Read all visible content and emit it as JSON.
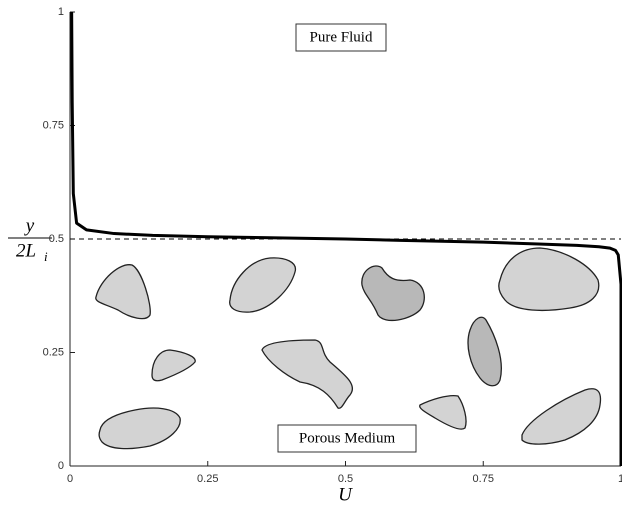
{
  "chart_data": {
    "type": "line",
    "xlabel": "U",
    "ylabel_numerator": "y",
    "ylabel_denominator": "2L",
    "ylabel_subscript": "i",
    "annotations": [
      "Pure Fluid",
      "Porous Medium"
    ],
    "x": [
      0.003,
      0.004,
      0.006,
      0.012,
      0.03,
      0.08,
      0.15,
      0.25,
      0.35,
      0.5,
      0.6,
      0.75,
      0.85,
      0.92,
      0.96,
      0.98,
      0.99,
      0.995,
      1,
      1
    ],
    "series": [
      {
        "color": "#000000",
        "values": [
          1,
          0.8,
          0.6,
          0.535,
          0.52,
          0.512,
          0.508,
          0.505,
          0.503,
          0.5,
          0.497,
          0.493,
          0.489,
          0.486,
          0.483,
          0.48,
          0.475,
          0.465,
          0.4,
          0
        ]
      }
    ],
    "hline": 0.5,
    "xlim": [
      0,
      1
    ],
    "ylim": [
      0,
      1
    ],
    "xticks": [
      0,
      0.25,
      0.5,
      0.75,
      1
    ],
    "yticks": [
      0,
      0.25,
      0.5,
      0.75,
      1
    ]
  }
}
